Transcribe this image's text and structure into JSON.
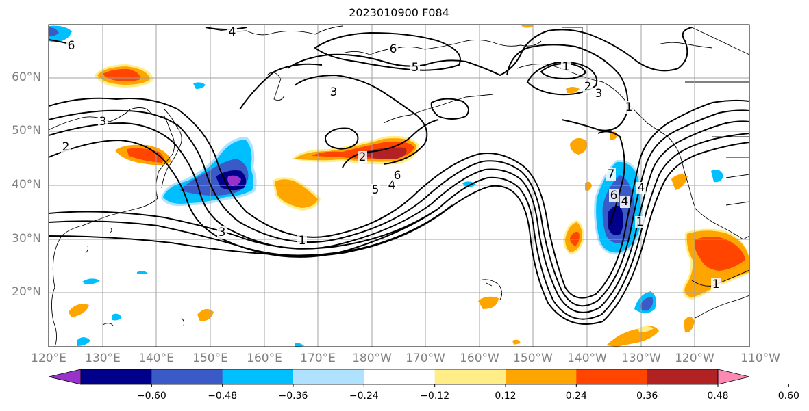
{
  "title": "2023010900 F084",
  "map": {
    "lat_labels": [
      "60°N",
      "50°N",
      "40°N",
      "30°N",
      "20°N"
    ],
    "lon_labels": [
      "120°E",
      "130°E",
      "140°E",
      "150°E",
      "160°E",
      "170°E",
      "180°W",
      "170°W",
      "160°W",
      "150°W",
      "140°W",
      "130°W",
      "120°W",
      "110°W"
    ],
    "contour_labels": [
      "6",
      "4",
      "3",
      "2",
      "3",
      "5",
      "6",
      "3",
      "1",
      "2",
      "3",
      "1",
      "4",
      "5",
      "6",
      "1",
      "2",
      "1",
      "4",
      "6",
      "7",
      "4",
      "1"
    ]
  },
  "colorbar": {
    "ticks": [
      "−0.60",
      "−0.48",
      "−0.36",
      "−0.24",
      "−0.12",
      "0.12",
      "0.24",
      "0.36",
      "0.48",
      "0.60"
    ],
    "colors": [
      "#9932cc",
      "#00008b",
      "#3a5bc7",
      "#00bfff",
      "#b0e2ff",
      "#ffffff",
      "#ffee88",
      "#ffa500",
      "#ff4500",
      "#b22222",
      "#ff88b2"
    ]
  }
}
